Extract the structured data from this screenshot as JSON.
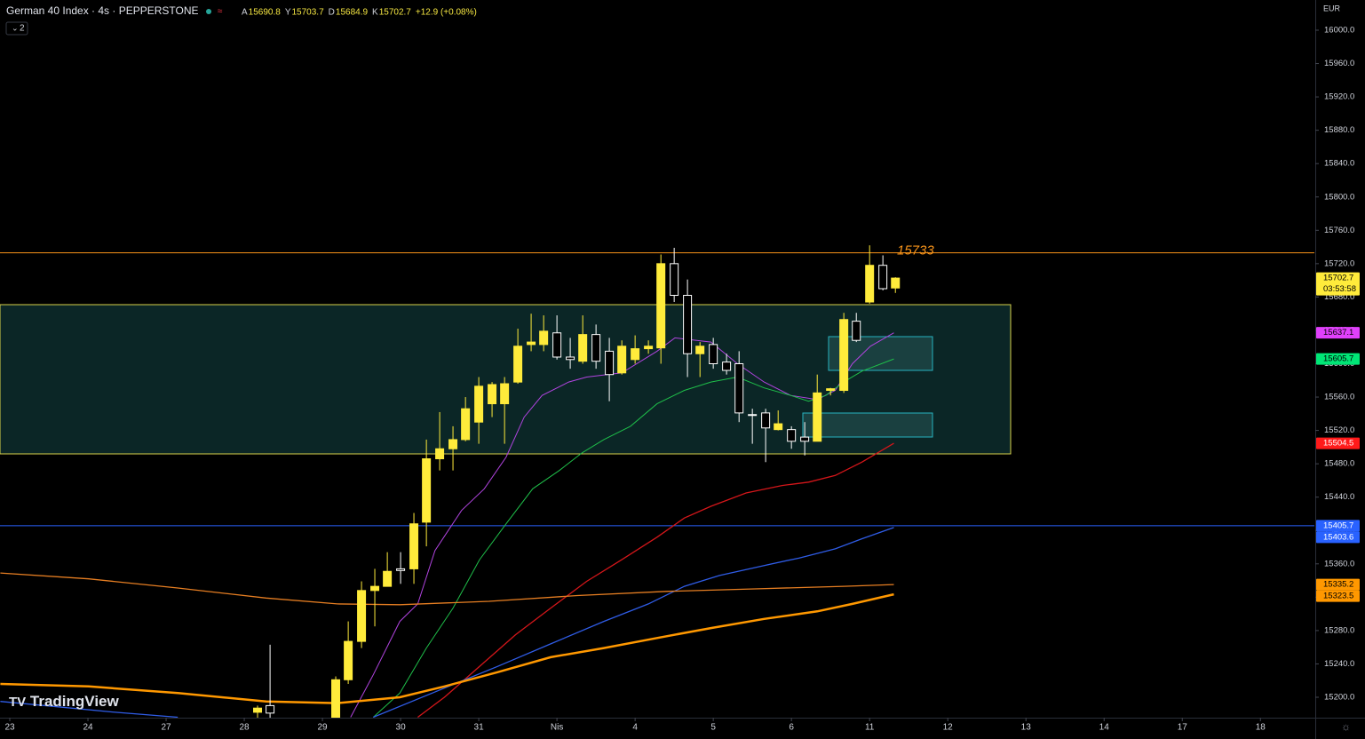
{
  "header": {
    "symbol": "German 40 Index · 4s · PEPPERSTONE",
    "ohlc_letters": [
      "A",
      "Y",
      "D",
      "K"
    ],
    "change": "+12.9 (+0.08%)",
    "indicators": "2",
    "currency": "EUR",
    "logo": "TradingView"
  },
  "chart_data": {
    "type": "candlestick",
    "xlim": [
      -0.125,
      16.69
    ],
    "ylim": [
      15175.5,
      16036.2
    ],
    "xticks": [
      {
        "value": 0,
        "label": "23"
      },
      {
        "value": 1,
        "label": "24"
      },
      {
        "value": 2,
        "label": "27"
      },
      {
        "value": 3,
        "label": "28"
      },
      {
        "value": 4,
        "label": "29"
      },
      {
        "value": 5,
        "label": "30"
      },
      {
        "value": 6,
        "label": "31"
      },
      {
        "value": 7,
        "label": "Nis"
      },
      {
        "value": 8,
        "label": "4"
      },
      {
        "value": 9,
        "label": "5"
      },
      {
        "value": 10,
        "label": "6"
      },
      {
        "value": 11,
        "label": "11"
      },
      {
        "value": 12,
        "label": "12"
      },
      {
        "value": 13,
        "label": "13"
      },
      {
        "value": 14,
        "label": "14"
      },
      {
        "value": 15,
        "label": "17"
      },
      {
        "value": 16,
        "label": "18"
      }
    ],
    "yticks": [
      {
        "value": 16000,
        "label": "16000.0"
      },
      {
        "value": 15960,
        "label": "15960.0"
      },
      {
        "value": 15920,
        "label": "15920.0"
      },
      {
        "value": 15880,
        "label": "15880.0"
      },
      {
        "value": 15840,
        "label": "15840.0"
      },
      {
        "value": 15800,
        "label": "15800.0"
      },
      {
        "value": 15760,
        "label": "15760.0"
      },
      {
        "value": 15720,
        "label": "15720.0"
      },
      {
        "value": 15680,
        "label": "15680.0"
      },
      {
        "value": 15640,
        "label": "15640.0"
      },
      {
        "value": 15600,
        "label": "15600.0"
      },
      {
        "value": 15560,
        "label": "15560.0"
      },
      {
        "value": 15520,
        "label": "15520.0"
      },
      {
        "value": 15480,
        "label": "15480.0"
      },
      {
        "value": 15440,
        "label": "15440.0"
      },
      {
        "value": 15400,
        "label": "15400.0"
      },
      {
        "value": 15360,
        "label": "15360.0"
      },
      {
        "value": 15320,
        "label": "15320.0"
      },
      {
        "value": 15280,
        "label": "15280.0"
      },
      {
        "value": 15240,
        "label": "15240.0"
      },
      {
        "value": 15200,
        "label": "15200.0"
      }
    ],
    "up_color": "#ffeb3b",
    "down_color": "#ffffff",
    "candles": {
      "x": [
        3.17,
        3.33,
        4.17,
        4.33,
        4.5,
        4.67,
        4.83,
        5,
        5.17,
        5.33,
        5.5,
        5.67,
        5.83,
        6,
        6.17,
        6.33,
        6.5,
        6.67,
        6.83,
        7,
        7.17,
        7.33,
        7.5,
        7.67,
        7.83,
        8,
        8.17,
        8.33,
        8.5,
        8.67,
        8.83,
        9,
        9.17,
        9.33,
        9.5,
        9.67,
        9.83,
        10,
        10.17,
        10.33,
        10.5,
        10.67,
        10.83,
        11,
        11.17,
        11.33
      ],
      "open": [
        15182,
        15190,
        15176,
        15221,
        15267,
        15328,
        15333,
        15354,
        15354,
        15410,
        15486,
        15498,
        15509,
        15530,
        15552,
        15552,
        15578,
        15623,
        15623,
        15637,
        15608,
        15603,
        15635,
        15615,
        15589,
        15605,
        15618,
        15619,
        15720,
        15682,
        15612,
        15623,
        15602,
        15600,
        15539,
        15541,
        15521,
        15521,
        15512,
        15507,
        15568,
        15568,
        15651,
        15674,
        15718,
        15690.8
      ],
      "high": [
        15190,
        15263,
        15225,
        15291,
        15339,
        15354,
        15374,
        15374,
        15421,
        15509,
        15542,
        15525,
        15560,
        15584,
        15578,
        15584,
        15642,
        15660,
        15658,
        15658,
        15631,
        15658,
        15647,
        15631,
        15628,
        15634,
        15628,
        15731,
        15739,
        15701,
        15626,
        15631,
        15612,
        15615,
        15546,
        15546,
        15544,
        15525,
        15530,
        15587,
        15571,
        15661,
        15661,
        15742,
        15730,
        15703.7
      ],
      "low": [
        15175,
        15175,
        15176,
        15216,
        15259,
        15285,
        15333,
        15336,
        15336,
        15381,
        15472,
        15472,
        15507,
        15504,
        15536,
        15504,
        15576,
        15615,
        15615,
        15605,
        15594,
        15600,
        15594,
        15555,
        15587,
        15600,
        15612,
        15600,
        15674,
        15584,
        15584,
        15594,
        15587,
        15530,
        15504,
        15482,
        15520,
        15498,
        15490,
        15507,
        15562,
        15565,
        15626,
        15672,
        15688,
        15684.9
      ],
      "close": [
        15187,
        15181,
        15221,
        15267,
        15328,
        15333,
        15351,
        15352,
        15408,
        15486,
        15498,
        15509,
        15546,
        15573,
        15575,
        15576,
        15621,
        15626,
        15639,
        15608,
        15605,
        15635,
        15603,
        15587,
        15621,
        15618,
        15621,
        15720,
        15682,
        15612,
        15621,
        15600,
        15592,
        15541,
        15538,
        15523,
        15528,
        15507,
        15507,
        15565,
        15570,
        15653,
        15628,
        15718,
        15690,
        15702.7
      ]
    },
    "series": [
      {
        "color": "#b144e0",
        "width": 1,
        "x": [
          4.36,
          4.65,
          4.99,
          5.22,
          5.44,
          5.78,
          6.07,
          6.35,
          6.58,
          6.81,
          7.15,
          7.38,
          7.83,
          8.28,
          8.51,
          8.97,
          9.31,
          9.65,
          9.99,
          10.33,
          10.56,
          10.78,
          11.01,
          11.31
        ],
        "values": [
          15176,
          15227,
          15291,
          15312,
          15376,
          15424,
          15450,
          15488,
          15536,
          15562,
          15578,
          15584,
          15589,
          15615,
          15631,
          15626,
          15600,
          15578,
          15562,
          15557,
          15568,
          15600,
          15621,
          15637.1
        ]
      },
      {
        "color": "#1fbf4a",
        "width": 1,
        "x": [
          4.65,
          4.99,
          5.33,
          5.67,
          6.01,
          6.35,
          6.69,
          7.03,
          7.32,
          7.6,
          7.94,
          8.28,
          8.63,
          8.97,
          9.31,
          9.65,
          9.99,
          10.22,
          10.44,
          10.67,
          10.9,
          11.31
        ],
        "values": [
          15176,
          15205,
          15259,
          15307,
          15365,
          15408,
          15450,
          15472,
          15493,
          15509,
          15525,
          15552,
          15568,
          15578,
          15584,
          15571,
          15562,
          15555,
          15562,
          15578,
          15591,
          15605.7
        ]
      },
      {
        "color": "#d4161a",
        "width": 1.3,
        "x": [
          5.22,
          5.56,
          6.01,
          6.47,
          6.92,
          7.38,
          7.83,
          8.28,
          8.63,
          8.97,
          9.42,
          9.88,
          10.22,
          10.56,
          10.9,
          11.31
        ],
        "values": [
          15176,
          15200,
          15237,
          15275,
          15307,
          15339,
          15365,
          15392,
          15415,
          15429,
          15445,
          15454,
          15458,
          15466,
          15482,
          15504.5
        ]
      },
      {
        "color": "#2f5ce6",
        "width": 1.3,
        "x": [
          -0.12,
          0.56,
          1.35,
          2.15,
          3,
          4.65,
          5.56,
          6.24,
          6.92,
          7.6,
          8.17,
          8.63,
          9.08,
          9.65,
          10.1,
          10.56,
          10.9,
          11.31
        ],
        "values": [
          15195,
          15189,
          15182,
          15176,
          null,
          15176,
          15211,
          15237,
          15264,
          15291,
          15312,
          15333,
          15346,
          15358,
          15367,
          15378,
          15390,
          15403.6
        ]
      },
      {
        "color": "#e67e22",
        "width": 1.3,
        "x": [
          -0.12,
          1.01,
          2.15,
          3.28,
          4.19,
          4.99,
          6.13,
          7.26,
          8.4,
          9.53,
          10.67,
          11.31
        ],
        "values": [
          15349,
          15342,
          15331,
          15319,
          15312,
          15311,
          15315,
          15322,
          15327,
          15330,
          15333,
          15335.2
        ]
      },
      {
        "color": "#ff9800",
        "width": 2.5,
        "x": [
          -0.12,
          1.01,
          2.15,
          3.28,
          4.19,
          4.99,
          5.56,
          6.24,
          6.92,
          7.6,
          8.28,
          8.97,
          9.65,
          10.33,
          10.78,
          11.31
        ],
        "values": [
          15216,
          15213,
          15205,
          15195,
          15193,
          15200,
          15213,
          15230,
          15248,
          15259,
          15271,
          15283,
          15294,
          15303,
          15312,
          15323.5
        ]
      }
    ],
    "hlines": [
      {
        "value": 15733,
        "color": "#f7931a",
        "show_label": true
      },
      {
        "value": 15405.7,
        "color": "#2962ff"
      }
    ],
    "price_tags": [
      {
        "value": 15702.7,
        "color": "#ffeb3b",
        "text_color": "#000000",
        "timer": "03:53:58"
      },
      {
        "value": 15637.1,
        "color": "#e040fb",
        "text_color": "#000000"
      },
      {
        "value": 15605.7,
        "color": "#00e676",
        "text_color": "#000000"
      },
      {
        "value": 15504.5,
        "color": "#ff1a1a",
        "text_color": "#ffffff"
      },
      {
        "value": 15405.7,
        "color": "#2962ff",
        "text_color": "#ffffff"
      },
      {
        "value": 15403.6,
        "color": "#2962ff",
        "text_color": "#ffffff"
      },
      {
        "value": 15335.2,
        "color": "#ff9800",
        "text_color": "#000000"
      },
      {
        "value": 15323.5,
        "color": "#ff9800",
        "text_color": "#000000"
      }
    ]
  }
}
